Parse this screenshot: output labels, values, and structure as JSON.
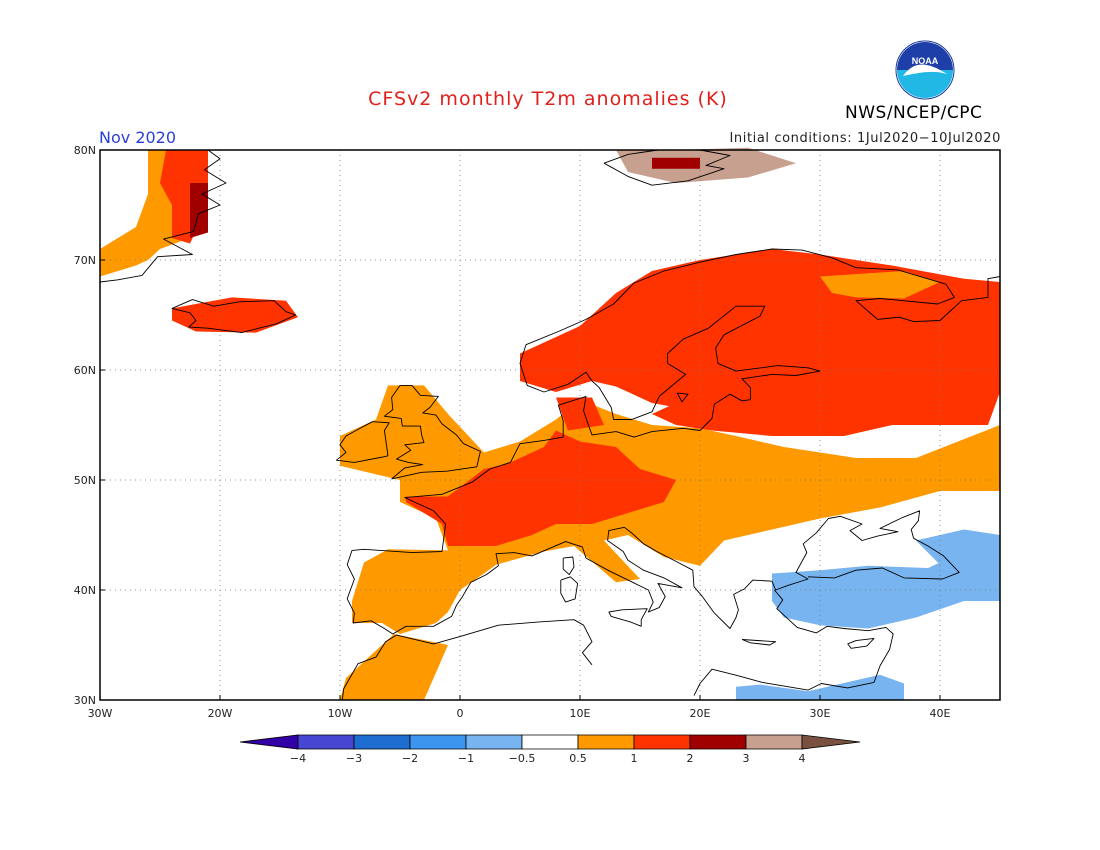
{
  "header": {
    "title": "CFSv2 monthly T2m anomalies (K)",
    "agency": "NWS/NCEP/CPC",
    "logo_text": "NOAA",
    "month": "Nov 2020",
    "initial_conditions": "Initial conditions: 1Jul2020−10Jul2020"
  },
  "map": {
    "extent": {
      "lon": [
        -30,
        45
      ],
      "lat": [
        30,
        80
      ]
    },
    "lat_ticks": [
      {
        "value": 80,
        "label": "80N"
      },
      {
        "value": 70,
        "label": "70N"
      },
      {
        "value": 60,
        "label": "60N"
      },
      {
        "value": 50,
        "label": "50N"
      },
      {
        "value": 40,
        "label": "40N"
      },
      {
        "value": 30,
        "label": "30N"
      }
    ],
    "lon_ticks": [
      {
        "value": -30,
        "label": "30W"
      },
      {
        "value": -20,
        "label": "20W"
      },
      {
        "value": -10,
        "label": "10W"
      },
      {
        "value": 0,
        "label": "0"
      },
      {
        "value": 10,
        "label": "10E"
      },
      {
        "value": 20,
        "label": "20E"
      },
      {
        "value": 30,
        "label": "30E"
      },
      {
        "value": 40,
        "label": "40E"
      }
    ],
    "grid": true,
    "colors": {
      "c0_5_1": "#ff9900",
      "c1_2": "#ff3300",
      "c2_3": "#a00000",
      "c3_4": "#c8a090",
      "cneg0_5_1": "#78b4f0"
    }
  },
  "colorbar": {
    "bins": [
      {
        "color": "#3300a8"
      },
      {
        "color": "#4646d2"
      },
      {
        "color": "#1e6ed2"
      },
      {
        "color": "#3c96f0"
      },
      {
        "color": "#78b4f0"
      },
      {
        "color": "#ffffff"
      },
      {
        "color": "#ff9900"
      },
      {
        "color": "#ff3300"
      },
      {
        "color": "#a00000"
      },
      {
        "color": "#c8a090"
      },
      {
        "color": "#7a5040"
      }
    ],
    "labels": [
      "−4",
      "−3",
      "−2",
      "−1",
      "−0.5",
      "0.5",
      "1",
      "2",
      "3",
      "4"
    ]
  }
}
